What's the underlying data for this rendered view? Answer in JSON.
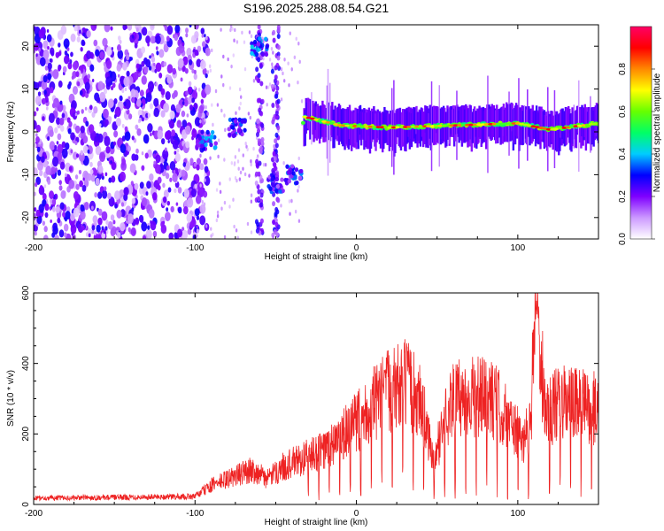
{
  "chart_data": [
    {
      "type": "heatmap",
      "title": "S196.2025.288.08.54.G21",
      "xlabel": "Height of straight line (km)",
      "ylabel": "Frequency (Hz)",
      "xlim": [
        -200,
        150
      ],
      "ylim": [
        -25,
        25
      ],
      "xticks": [
        "-200",
        "-100",
        "0",
        "100"
      ],
      "yticks": [
        "-20",
        "-10",
        "0",
        "10",
        "20"
      ],
      "colorbar": {
        "label": "Normalized spectral amplitude",
        "range": [
          0,
          1
        ],
        "ticks": [
          "0.0",
          "0.2",
          "0.4",
          "0.6",
          "0.8"
        ],
        "colors": [
          "#ffffff",
          "#cc99ff",
          "#7f00ff",
          "#0000ff",
          "#00ccff",
          "#00ff66",
          "#66ff00",
          "#ffff00",
          "#ff8800",
          "#ff0000",
          "#ff0066"
        ]
      },
      "features": {
        "noise_x_range": [
          -200,
          -100
        ],
        "bursts": [
          {
            "x": -92,
            "freq": -2,
            "amp": 0.35
          },
          {
            "x": -74,
            "freq": 1,
            "amp": 0.3
          },
          {
            "x": -60,
            "freq": 20,
            "amp": 0.35
          },
          {
            "x": -50,
            "freq": -12,
            "amp": 0.3
          },
          {
            "x": -39,
            "freq": -10,
            "amp": 0.35
          }
        ],
        "ridge": [
          {
            "x": -32,
            "freq": 3.5
          },
          {
            "x": -10,
            "freq": 1.5
          },
          {
            "x": 20,
            "freq": 1.0
          },
          {
            "x": 60,
            "freq": 1.5
          },
          {
            "x": 100,
            "freq": 2.0
          },
          {
            "x": 120,
            "freq": 0.5
          },
          {
            "x": 150,
            "freq": 2.0
          }
        ],
        "ridge_peak_amp": 0.95
      }
    },
    {
      "type": "line",
      "title": "",
      "xlabel": "Height of straight line (km)",
      "ylabel": "SNR (10 * v/v)",
      "xlim": [
        -200,
        150
      ],
      "ylim": [
        0,
        600
      ],
      "xticks": [
        "-200",
        "-100",
        "0",
        "100"
      ],
      "yticks": [
        "0",
        "200",
        "400",
        "600"
      ],
      "color": "#ee2222",
      "series": [
        {
          "name": "SNR",
          "envelope": [
            {
              "x": -200,
              "y": 20
            },
            {
              "x": -100,
              "y": 25
            },
            {
              "x": -90,
              "y": 60
            },
            {
              "x": -80,
              "y": 80
            },
            {
              "x": -65,
              "y": 110
            },
            {
              "x": -55,
              "y": 80
            },
            {
              "x": -45,
              "y": 120
            },
            {
              "x": -30,
              "y": 150
            },
            {
              "x": -20,
              "y": 170
            },
            {
              "x": -10,
              "y": 210
            },
            {
              "x": 0,
              "y": 260
            },
            {
              "x": 10,
              "y": 310
            },
            {
              "x": 20,
              "y": 360
            },
            {
              "x": 30,
              "y": 380
            },
            {
              "x": 40,
              "y": 330
            },
            {
              "x": 45,
              "y": 200
            },
            {
              "x": 48,
              "y": 120
            },
            {
              "x": 52,
              "y": 220
            },
            {
              "x": 58,
              "y": 320
            },
            {
              "x": 70,
              "y": 340
            },
            {
              "x": 85,
              "y": 330
            },
            {
              "x": 95,
              "y": 260
            },
            {
              "x": 103,
              "y": 200
            },
            {
              "x": 108,
              "y": 260
            },
            {
              "x": 110,
              "y": 530
            },
            {
              "x": 112,
              "y": 600
            },
            {
              "x": 114,
              "y": 450
            },
            {
              "x": 118,
              "y": 300
            },
            {
              "x": 130,
              "y": 320
            },
            {
              "x": 150,
              "y": 300
            }
          ],
          "dropouts_start_x": -30,
          "dropout_spacing": 6.5
        }
      ]
    }
  ]
}
